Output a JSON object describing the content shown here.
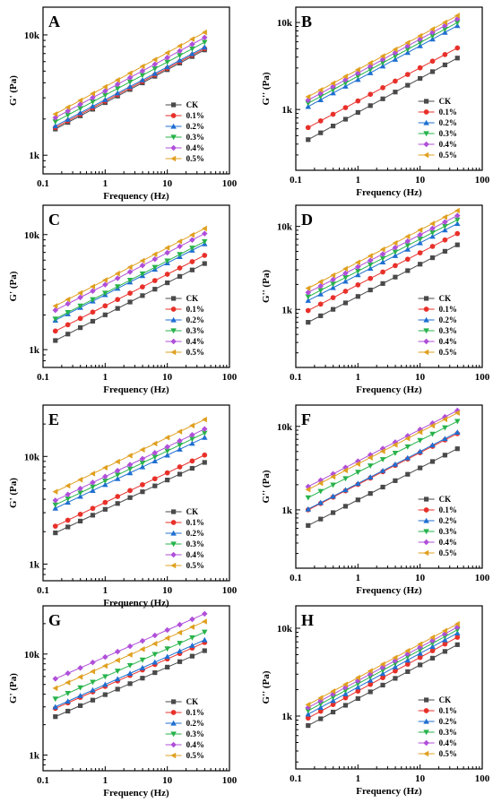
{
  "chart_data": [
    {
      "type": "scatter",
      "panel_label": "A",
      "xlabel": "Frequency (Hz)",
      "ylabel": "G' (Pa)",
      "xscale": "log",
      "yscale": "log",
      "xlim": [
        0.1,
        100
      ],
      "ylim": [
        700,
        17000
      ],
      "xticks": [
        {
          "value": 0.1,
          "label": "0.1"
        },
        {
          "value": 1,
          "label": "1"
        },
        {
          "value": 10,
          "label": "10"
        },
        {
          "value": 100,
          "label": "100"
        }
      ],
      "yticks": [
        {
          "value": 1000,
          "label": "1k"
        },
        {
          "value": 10000,
          "label": "10k"
        }
      ],
      "legend_position": "lower-right",
      "series": [
        {
          "name": "CK",
          "color": "#4a4a4a",
          "marker": "square",
          "start": 1650,
          "end": 7500
        },
        {
          "name": "0.1%",
          "color": "#e8302a",
          "marker": "circle",
          "start": 1700,
          "end": 7700
        },
        {
          "name": "0.2%",
          "color": "#1f6fd1",
          "marker": "triangle-up",
          "start": 1750,
          "end": 7900
        },
        {
          "name": "0.3%",
          "color": "#27b34a",
          "marker": "triangle-down",
          "start": 1900,
          "end": 8700
        },
        {
          "name": "0.4%",
          "color": "#b04fd9",
          "marker": "diamond",
          "start": 2050,
          "end": 9500
        },
        {
          "name": "0.5%",
          "color": "#e0a020",
          "marker": "triangle-left",
          "start": 2200,
          "end": 10500
        }
      ]
    },
    {
      "type": "scatter",
      "panel_label": "B",
      "xlabel": "Frequency (Hz)",
      "ylabel": "G'' (Pa)",
      "xscale": "log",
      "yscale": "log",
      "xlim": [
        0.1,
        100
      ],
      "ylim": [
        200,
        15000
      ],
      "xticks": [
        {
          "value": 0.1,
          "label": "0.1"
        },
        {
          "value": 1,
          "label": "1"
        },
        {
          "value": 10,
          "label": "10"
        },
        {
          "value": 100,
          "label": "100"
        }
      ],
      "yticks": [
        {
          "value": 1000,
          "label": "1k"
        },
        {
          "value": 10000,
          "label": "10k"
        }
      ],
      "legend_position": "lower-right",
      "series": [
        {
          "name": "CK",
          "color": "#4a4a4a",
          "marker": "square",
          "start": 450,
          "end": 3900
        },
        {
          "name": "0.1%",
          "color": "#e8302a",
          "marker": "circle",
          "start": 620,
          "end": 5100
        },
        {
          "name": "0.2%",
          "color": "#1f6fd1",
          "marker": "triangle-up",
          "start": 1080,
          "end": 9200
        },
        {
          "name": "0.3%",
          "color": "#27b34a",
          "marker": "triangle-down",
          "start": 1180,
          "end": 10000
        },
        {
          "name": "0.4%",
          "color": "#b04fd9",
          "marker": "diamond",
          "start": 1280,
          "end": 11000
        },
        {
          "name": "0.5%",
          "color": "#e0a020",
          "marker": "triangle-left",
          "start": 1400,
          "end": 12000
        }
      ]
    },
    {
      "type": "scatter",
      "panel_label": "C",
      "xlabel": "Frequency (Hz)",
      "ylabel": "G' (Pa)",
      "xscale": "log",
      "yscale": "log",
      "xlim": [
        0.1,
        100
      ],
      "ylim": [
        700,
        18000
      ],
      "xticks": [
        {
          "value": 0.1,
          "label": "0.1"
        },
        {
          "value": 1,
          "label": "1"
        },
        {
          "value": 10,
          "label": "10"
        },
        {
          "value": 100,
          "label": "100"
        }
      ],
      "yticks": [
        {
          "value": 1000,
          "label": "1k"
        },
        {
          "value": 10000,
          "label": "10k"
        }
      ],
      "legend_position": "lower-right",
      "series": [
        {
          "name": "CK",
          "color": "#4a4a4a",
          "marker": "square",
          "start": 1200,
          "end": 5600
        },
        {
          "name": "0.1%",
          "color": "#e8302a",
          "marker": "circle",
          "start": 1450,
          "end": 6600
        },
        {
          "name": "0.2%",
          "color": "#1f6fd1",
          "marker": "triangle-up",
          "start": 1800,
          "end": 8300
        },
        {
          "name": "0.3%",
          "color": "#27b34a",
          "marker": "triangle-down",
          "start": 1850,
          "end": 8700
        },
        {
          "name": "0.4%",
          "color": "#b04fd9",
          "marker": "diamond",
          "start": 2200,
          "end": 10200
        },
        {
          "name": "0.5%",
          "color": "#e0a020",
          "marker": "triangle-left",
          "start": 2400,
          "end": 11300
        }
      ]
    },
    {
      "type": "scatter",
      "panel_label": "D",
      "xlabel": "Frequency (Hz)",
      "ylabel": "G'' (Pa)",
      "xscale": "log",
      "yscale": "log",
      "xlim": [
        0.1,
        100
      ],
      "ylim": [
        200,
        18000
      ],
      "xticks": [
        {
          "value": 0.1,
          "label": "0.1"
        },
        {
          "value": 1,
          "label": "1"
        },
        {
          "value": 10,
          "label": "10"
        },
        {
          "value": 100,
          "label": "100"
        }
      ],
      "yticks": [
        {
          "value": 1000,
          "label": "1k"
        },
        {
          "value": 10000,
          "label": "10k"
        }
      ],
      "legend_position": "lower-right",
      "series": [
        {
          "name": "CK",
          "color": "#4a4a4a",
          "marker": "square",
          "start": 700,
          "end": 6000
        },
        {
          "name": "0.1%",
          "color": "#e8302a",
          "marker": "circle",
          "start": 970,
          "end": 8200
        },
        {
          "name": "0.2%",
          "color": "#1f6fd1",
          "marker": "triangle-up",
          "start": 1280,
          "end": 10800
        },
        {
          "name": "0.3%",
          "color": "#27b34a",
          "marker": "triangle-down",
          "start": 1420,
          "end": 12000
        },
        {
          "name": "0.4%",
          "color": "#b04fd9",
          "marker": "diamond",
          "start": 1600,
          "end": 13500
        },
        {
          "name": "0.5%",
          "color": "#e0a020",
          "marker": "triangle-left",
          "start": 1800,
          "end": 15500
        }
      ]
    },
    {
      "type": "scatter",
      "panel_label": "E",
      "xlabel": "Frequency (Hz)",
      "ylabel": "G' (Pa)",
      "xscale": "log",
      "yscale": "log",
      "xlim": [
        0.1,
        100
      ],
      "ylim": [
        700,
        30000
      ],
      "xticks": [
        {
          "value": 0.1,
          "label": "0.1"
        },
        {
          "value": 1,
          "label": "1"
        },
        {
          "value": 10,
          "label": "10"
        },
        {
          "value": 100,
          "label": "100"
        }
      ],
      "yticks": [
        {
          "value": 1000,
          "label": "1k"
        },
        {
          "value": 10000,
          "label": "10k"
        }
      ],
      "legend_position": "lower-right",
      "series": [
        {
          "name": "CK",
          "color": "#4a4a4a",
          "marker": "square",
          "start": 1950,
          "end": 8800
        },
        {
          "name": "0.1%",
          "color": "#e8302a",
          "marker": "circle",
          "start": 2250,
          "end": 10300
        },
        {
          "name": "0.2%",
          "color": "#1f6fd1",
          "marker": "triangle-up",
          "start": 3300,
          "end": 15000
        },
        {
          "name": "0.3%",
          "color": "#27b34a",
          "marker": "triangle-down",
          "start": 3550,
          "end": 16500
        },
        {
          "name": "0.4%",
          "color": "#b04fd9",
          "marker": "diamond",
          "start": 3900,
          "end": 18000
        },
        {
          "name": "0.5%",
          "color": "#e0a020",
          "marker": "triangle-left",
          "start": 4700,
          "end": 22000
        }
      ]
    },
    {
      "type": "scatter",
      "panel_label": "F",
      "xlabel": "Frequency (Hz)",
      "ylabel": "G'' (Pa)",
      "xscale": "log",
      "yscale": "log",
      "xlim": [
        0.1,
        100
      ],
      "ylim": [
        200,
        18000
      ],
      "xticks": [
        {
          "value": 0.1,
          "label": "0.1"
        },
        {
          "value": 1,
          "label": "1"
        },
        {
          "value": 10,
          "label": "10"
        },
        {
          "value": 100,
          "label": "100"
        }
      ],
      "yticks": [
        {
          "value": 1000,
          "label": "1k"
        },
        {
          "value": 10000,
          "label": "10k"
        }
      ],
      "legend_position": "lower-right",
      "series": [
        {
          "name": "CK",
          "color": "#4a4a4a",
          "marker": "square",
          "start": 650,
          "end": 5400
        },
        {
          "name": "0.1%",
          "color": "#e8302a",
          "marker": "circle",
          "start": 1000,
          "end": 8200
        },
        {
          "name": "0.2%",
          "color": "#1f6fd1",
          "marker": "triangle-up",
          "start": 1020,
          "end": 8500
        },
        {
          "name": "0.3%",
          "color": "#27b34a",
          "marker": "triangle-down",
          "start": 1400,
          "end": 11500
        },
        {
          "name": "0.4%",
          "color": "#b04fd9",
          "marker": "diamond",
          "start": 1900,
          "end": 15500
        },
        {
          "name": "0.5%",
          "color": "#e0a020",
          "marker": "triangle-left",
          "start": 1750,
          "end": 14500
        }
      ]
    },
    {
      "type": "scatter",
      "panel_label": "G",
      "xlabel": "Frequency (Hz)",
      "ylabel": "G' (Pa)",
      "xscale": "log",
      "yscale": "log",
      "xlim": [
        0.1,
        100
      ],
      "ylim": [
        700,
        30000
      ],
      "xticks": [
        {
          "value": 0.1,
          "label": "0.1"
        },
        {
          "value": 1,
          "label": "1"
        },
        {
          "value": 10,
          "label": "10"
        },
        {
          "value": 100,
          "label": "100"
        }
      ],
      "yticks": [
        {
          "value": 1000,
          "label": "1k"
        },
        {
          "value": 10000,
          "label": "10k"
        }
      ],
      "legend_position": "lower-right",
      "series": [
        {
          "name": "CK",
          "color": "#4a4a4a",
          "marker": "square",
          "start": 2400,
          "end": 10800
        },
        {
          "name": "0.1%",
          "color": "#e8302a",
          "marker": "circle",
          "start": 2900,
          "end": 13000
        },
        {
          "name": "0.2%",
          "color": "#1f6fd1",
          "marker": "triangle-up",
          "start": 3000,
          "end": 13800
        },
        {
          "name": "0.3%",
          "color": "#27b34a",
          "marker": "triangle-down",
          "start": 3600,
          "end": 16500
        },
        {
          "name": "0.4%",
          "color": "#b04fd9",
          "marker": "diamond",
          "start": 5700,
          "end": 25000
        },
        {
          "name": "0.5%",
          "color": "#e0a020",
          "marker": "triangle-left",
          "start": 4600,
          "end": 21000
        }
      ]
    },
    {
      "type": "scatter",
      "panel_label": "H",
      "xlabel": "Frequency (Hz)",
      "ylabel": "G'' (Pa)",
      "xscale": "log",
      "yscale": "log",
      "xlim": [
        0.1,
        100
      ],
      "ylim": [
        250,
        18000
      ],
      "xticks": [
        {
          "value": 0.1,
          "label": "0.1"
        },
        {
          "value": 1,
          "label": "1"
        },
        {
          "value": 10,
          "label": "10"
        },
        {
          "value": 100,
          "label": "100"
        }
      ],
      "yticks": [
        {
          "value": 1000,
          "label": "1k"
        },
        {
          "value": 10000,
          "label": "10k"
        }
      ],
      "legend_position": "lower-right",
      "series": [
        {
          "name": "CK",
          "color": "#4a4a4a",
          "marker": "square",
          "start": 780,
          "end": 6500
        },
        {
          "name": "0.1%",
          "color": "#e8302a",
          "marker": "circle",
          "start": 950,
          "end": 7900
        },
        {
          "name": "0.2%",
          "color": "#1f6fd1",
          "marker": "triangle-up",
          "start": 1050,
          "end": 8800
        },
        {
          "name": "0.3%",
          "color": "#27b34a",
          "marker": "triangle-down",
          "start": 1150,
          "end": 9600
        },
        {
          "name": "0.4%",
          "color": "#b04fd9",
          "marker": "diamond",
          "start": 1250,
          "end": 10300
        },
        {
          "name": "0.5%",
          "color": "#e0a020",
          "marker": "triangle-left",
          "start": 1350,
          "end": 11200
        }
      ]
    }
  ]
}
